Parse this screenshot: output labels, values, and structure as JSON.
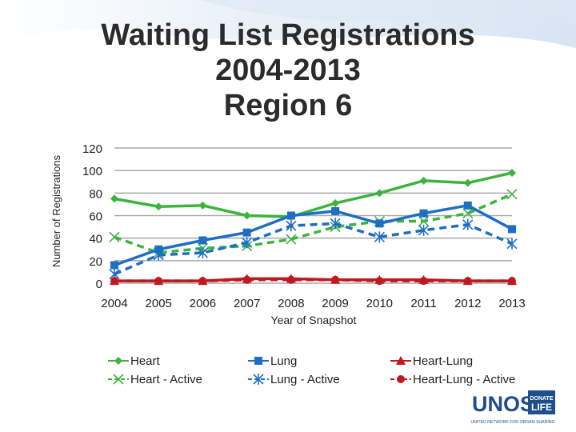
{
  "slide": {
    "title_lines": [
      "Waiting List Registrations",
      "2004-2013",
      "Region 6"
    ]
  },
  "chart_data": {
    "type": "line",
    "title": "",
    "xlabel": "Year of Snapshot",
    "ylabel": "Number of Registrations",
    "categories": [
      "2004",
      "2005",
      "2006",
      "2007",
      "2008",
      "2009",
      "2010",
      "2011",
      "2012",
      "2013"
    ],
    "ylim": [
      0,
      120
    ],
    "yticks": [
      0,
      20,
      40,
      60,
      80,
      100,
      120
    ],
    "grid": true,
    "legend_position": "bottom",
    "series": [
      {
        "name": "Heart",
        "values": [
          75,
          68,
          69,
          60,
          59,
          71,
          80,
          91,
          89,
          98
        ],
        "color": "#3cb43c",
        "marker": "diamond",
        "dash": false
      },
      {
        "name": "Heart - Active",
        "values": [
          41,
          27,
          31,
          33,
          39,
          50,
          55,
          55,
          62,
          79
        ],
        "color": "#3cb43c",
        "marker": "x",
        "dash": true
      },
      {
        "name": "Lung",
        "values": [
          16,
          30,
          38,
          45,
          60,
          64,
          53,
          62,
          69,
          48
        ],
        "color": "#1e6fc3",
        "marker": "square",
        "dash": false
      },
      {
        "name": "Lung - Active",
        "values": [
          8,
          25,
          27,
          36,
          51,
          53,
          41,
          47,
          52,
          35
        ],
        "color": "#1e6fc3",
        "marker": "asterisk",
        "dash": true
      },
      {
        "name": "Heart-Lung",
        "values": [
          2,
          2,
          2,
          4,
          4,
          3,
          3,
          3,
          2,
          2
        ],
        "color": "#c0181e",
        "marker": "triangle",
        "dash": false
      },
      {
        "name": "Heart-Lung - Active",
        "values": [
          2,
          2,
          2,
          3,
          3,
          3,
          2,
          2,
          2,
          2
        ],
        "color": "#c0181e",
        "marker": "circle",
        "dash": true
      }
    ]
  },
  "logo": {
    "brand": "UNOS",
    "badge_line1": "DONATE",
    "badge_line2": "LIFE",
    "tagline": "UNITED NETWORK FOR ORGAN SHARING",
    "brand_color": "#1f4e8c"
  }
}
